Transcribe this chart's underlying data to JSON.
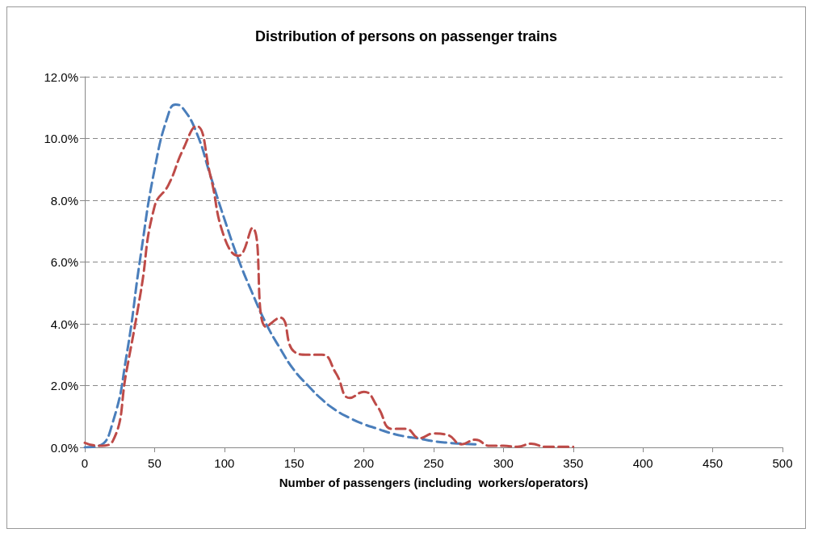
{
  "chart_data": {
    "type": "line",
    "title": "Distribution of persons on passenger trains",
    "xlabel": "Number of passengers (including  workers/operators)",
    "series": [
      {
        "color": "#4a7ebb",
        "x": [
          0,
          10,
          20,
          30,
          40,
          50,
          60,
          65,
          70,
          80,
          90,
          100,
          110,
          120,
          130,
          140,
          150,
          160,
          170,
          180,
          190,
          200,
          210,
          220,
          230,
          240,
          250,
          260,
          270,
          280
        ],
        "values": [
          0,
          0.05,
          0.8,
          3.0,
          6.2,
          9.0,
          10.8,
          11.1,
          11.0,
          10.2,
          8.8,
          7.4,
          6.1,
          5.0,
          4.0,
          3.2,
          2.5,
          2.0,
          1.55,
          1.2,
          0.95,
          0.75,
          0.6,
          0.45,
          0.35,
          0.28,
          0.2,
          0.15,
          0.12,
          0.1
        ]
      },
      {
        "color": "#be4b48",
        "x": [
          0,
          10,
          20,
          30,
          40,
          50,
          60,
          70,
          80,
          90,
          100,
          110,
          120,
          130,
          140,
          150,
          160,
          170,
          180,
          190,
          200,
          210,
          220,
          230,
          240,
          250,
          260,
          270,
          280,
          290,
          300,
          310,
          320,
          330,
          340,
          350
        ],
        "values": [
          0.15,
          0.05,
          0.2,
          2.5,
          5.0,
          7.8,
          8.5,
          9.6,
          10.4,
          8.8,
          6.8,
          6.2,
          7.1,
          3.9,
          4.2,
          3.1,
          3.0,
          3.0,
          2.4,
          1.6,
          1.8,
          1.3,
          0.6,
          0.6,
          0.3,
          0.45,
          0.4,
          0.1,
          0.25,
          0.05,
          0.05,
          0.02,
          0.12,
          0.02,
          0.02,
          0.02
        ]
      }
    ],
    "xlim": [
      0,
      500
    ],
    "xticks": [
      0,
      50,
      100,
      150,
      200,
      250,
      300,
      350,
      400,
      450,
      500
    ],
    "ylim": [
      0,
      12
    ],
    "yticks": [
      {
        "value": 0,
        "label": "0.0%"
      },
      {
        "value": 2,
        "label": "2.0%"
      },
      {
        "value": 4,
        "label": "4.0%"
      },
      {
        "value": 6,
        "label": "6.0%"
      },
      {
        "value": 8,
        "label": "8.0%"
      },
      {
        "value": 10,
        "label": "10.0%"
      },
      {
        "value": 12,
        "label": "12.0%"
      }
    ],
    "grid": "y",
    "marker": "none",
    "line_style": "dashed"
  }
}
